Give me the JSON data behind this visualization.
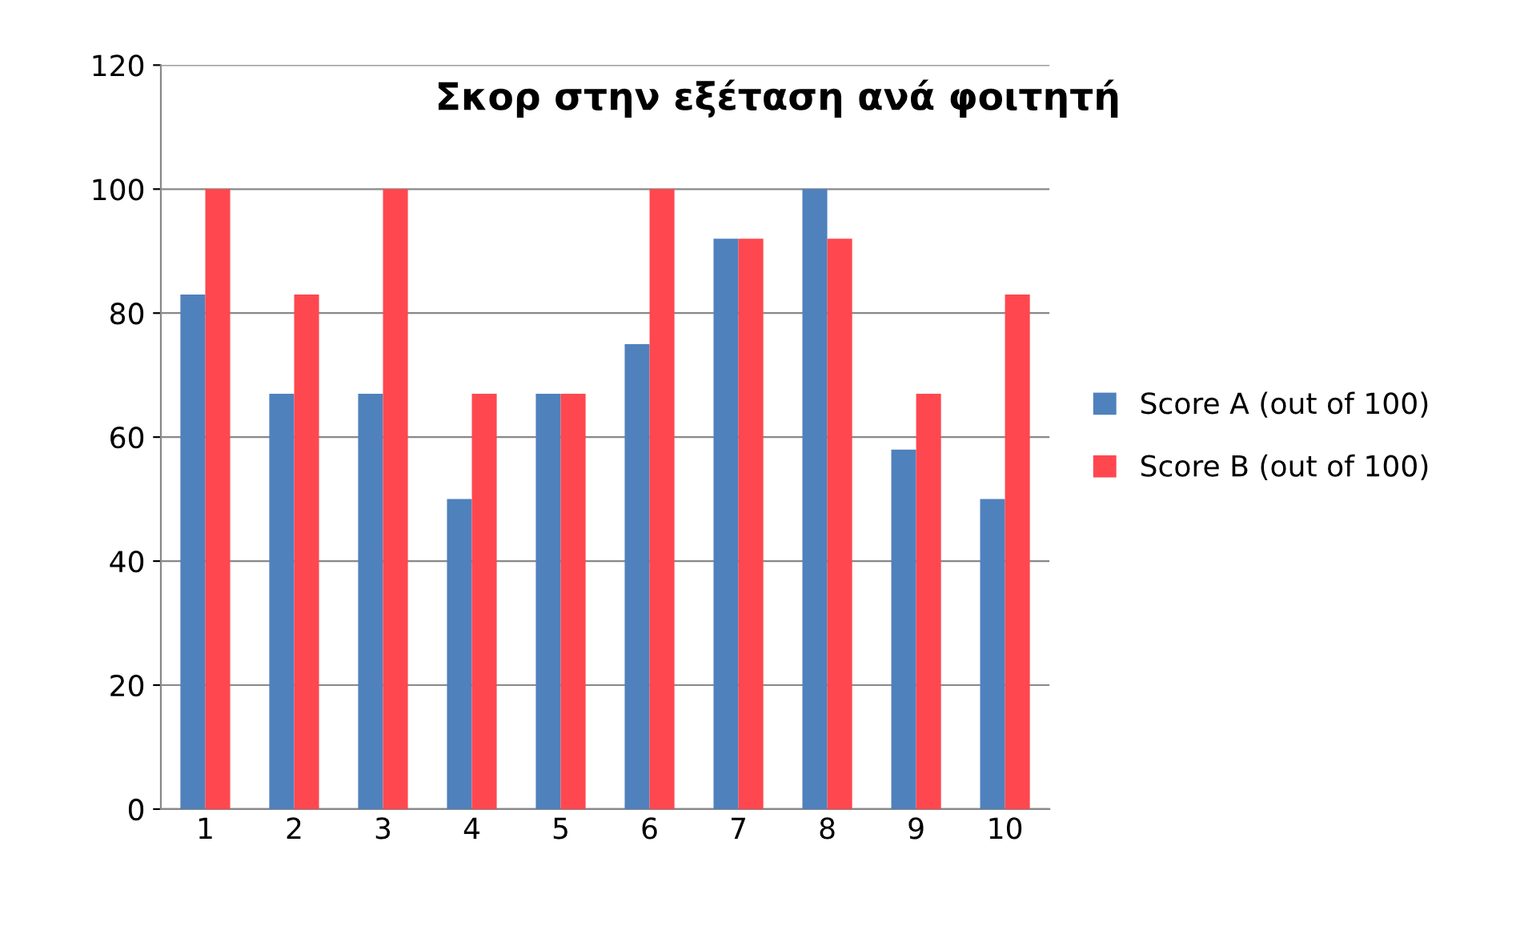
{
  "chart_data": {
    "type": "bar",
    "title": "Σκορ στην εξέταση ανά φοιτητή",
    "categories": [
      "1",
      "2",
      "3",
      "4",
      "5",
      "6",
      "7",
      "8",
      "9",
      "10"
    ],
    "series": [
      {
        "name": "Score A (out of 100)",
        "color": "#4f81bd",
        "values": [
          83,
          67,
          67,
          50,
          67,
          75,
          92,
          100,
          58,
          50
        ]
      },
      {
        "name": "Score B (out of 100)",
        "color": "#ff474f",
        "values": [
          100,
          83,
          100,
          67,
          67,
          100,
          92,
          92,
          67,
          83
        ]
      }
    ],
    "ylim": [
      0,
      120
    ],
    "yticks": [
      0,
      20,
      40,
      60,
      80,
      100,
      120
    ],
    "grid": "y",
    "legend": "right"
  }
}
